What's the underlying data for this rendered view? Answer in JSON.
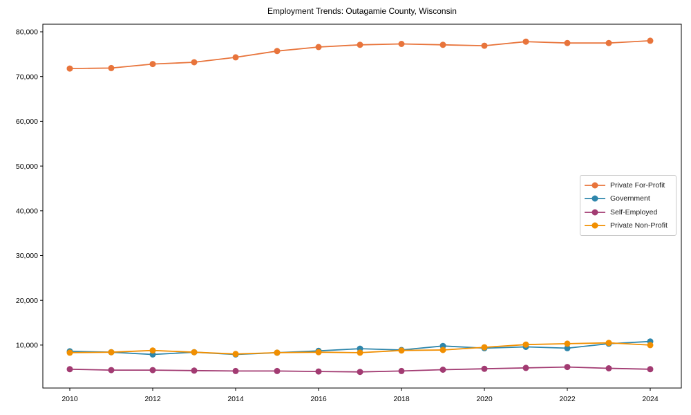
{
  "chart_data": {
    "type": "line",
    "title": "Employment Trends: Outagamie County, Wisconsin",
    "xlabel": "",
    "ylabel": "",
    "x": [
      2010,
      2011,
      2012,
      2013,
      2014,
      2015,
      2016,
      2017,
      2018,
      2019,
      2020,
      2021,
      2022,
      2023,
      2024
    ],
    "series": [
      {
        "name": "Private For-Profit",
        "color": "#E8743B",
        "values": [
          71800,
          71900,
          72800,
          73200,
          74300,
          75700,
          76600,
          77100,
          77300,
          77100,
          76900,
          77800,
          77500,
          77500,
          78000
        ]
      },
      {
        "name": "Government",
        "color": "#2E86AB",
        "values": [
          8600,
          8400,
          7900,
          8400,
          7900,
          8300,
          8700,
          9200,
          8900,
          9800,
          9300,
          9600,
          9300,
          10300,
          10800
        ]
      },
      {
        "name": "Self-Employed",
        "color": "#A23B72",
        "values": [
          4600,
          4400,
          4400,
          4300,
          4200,
          4200,
          4100,
          4000,
          4200,
          4500,
          4700,
          4900,
          5100,
          4800,
          4600
        ]
      },
      {
        "name": "Private Non-Profit",
        "color": "#F18F01",
        "values": [
          8300,
          8400,
          8800,
          8400,
          8000,
          8300,
          8400,
          8300,
          8800,
          8900,
          9500,
          10100,
          10300,
          10500,
          10000
        ]
      }
    ],
    "xticks": [
      2010,
      2012,
      2014,
      2016,
      2018,
      2020,
      2022,
      2024
    ],
    "xtick_labels": [
      "2010",
      "2012",
      "2014",
      "2016",
      "2018",
      "2020",
      "2022",
      "2024"
    ],
    "yticks": [
      10000,
      20000,
      30000,
      40000,
      50000,
      60000,
      70000,
      80000
    ],
    "ytick_labels": [
      "10,000",
      "20,000",
      "30,000",
      "40,000",
      "50,000",
      "60,000",
      "70,000",
      "80,000"
    ],
    "xlim": [
      2009.35,
      2024.75
    ],
    "ylim": [
      400,
      81700
    ],
    "grid": false,
    "legend_position": "center right",
    "legend_draw_order": [
      "Private For-Profit",
      "Government",
      "Self-Employed",
      "Private Non-Profit"
    ]
  }
}
